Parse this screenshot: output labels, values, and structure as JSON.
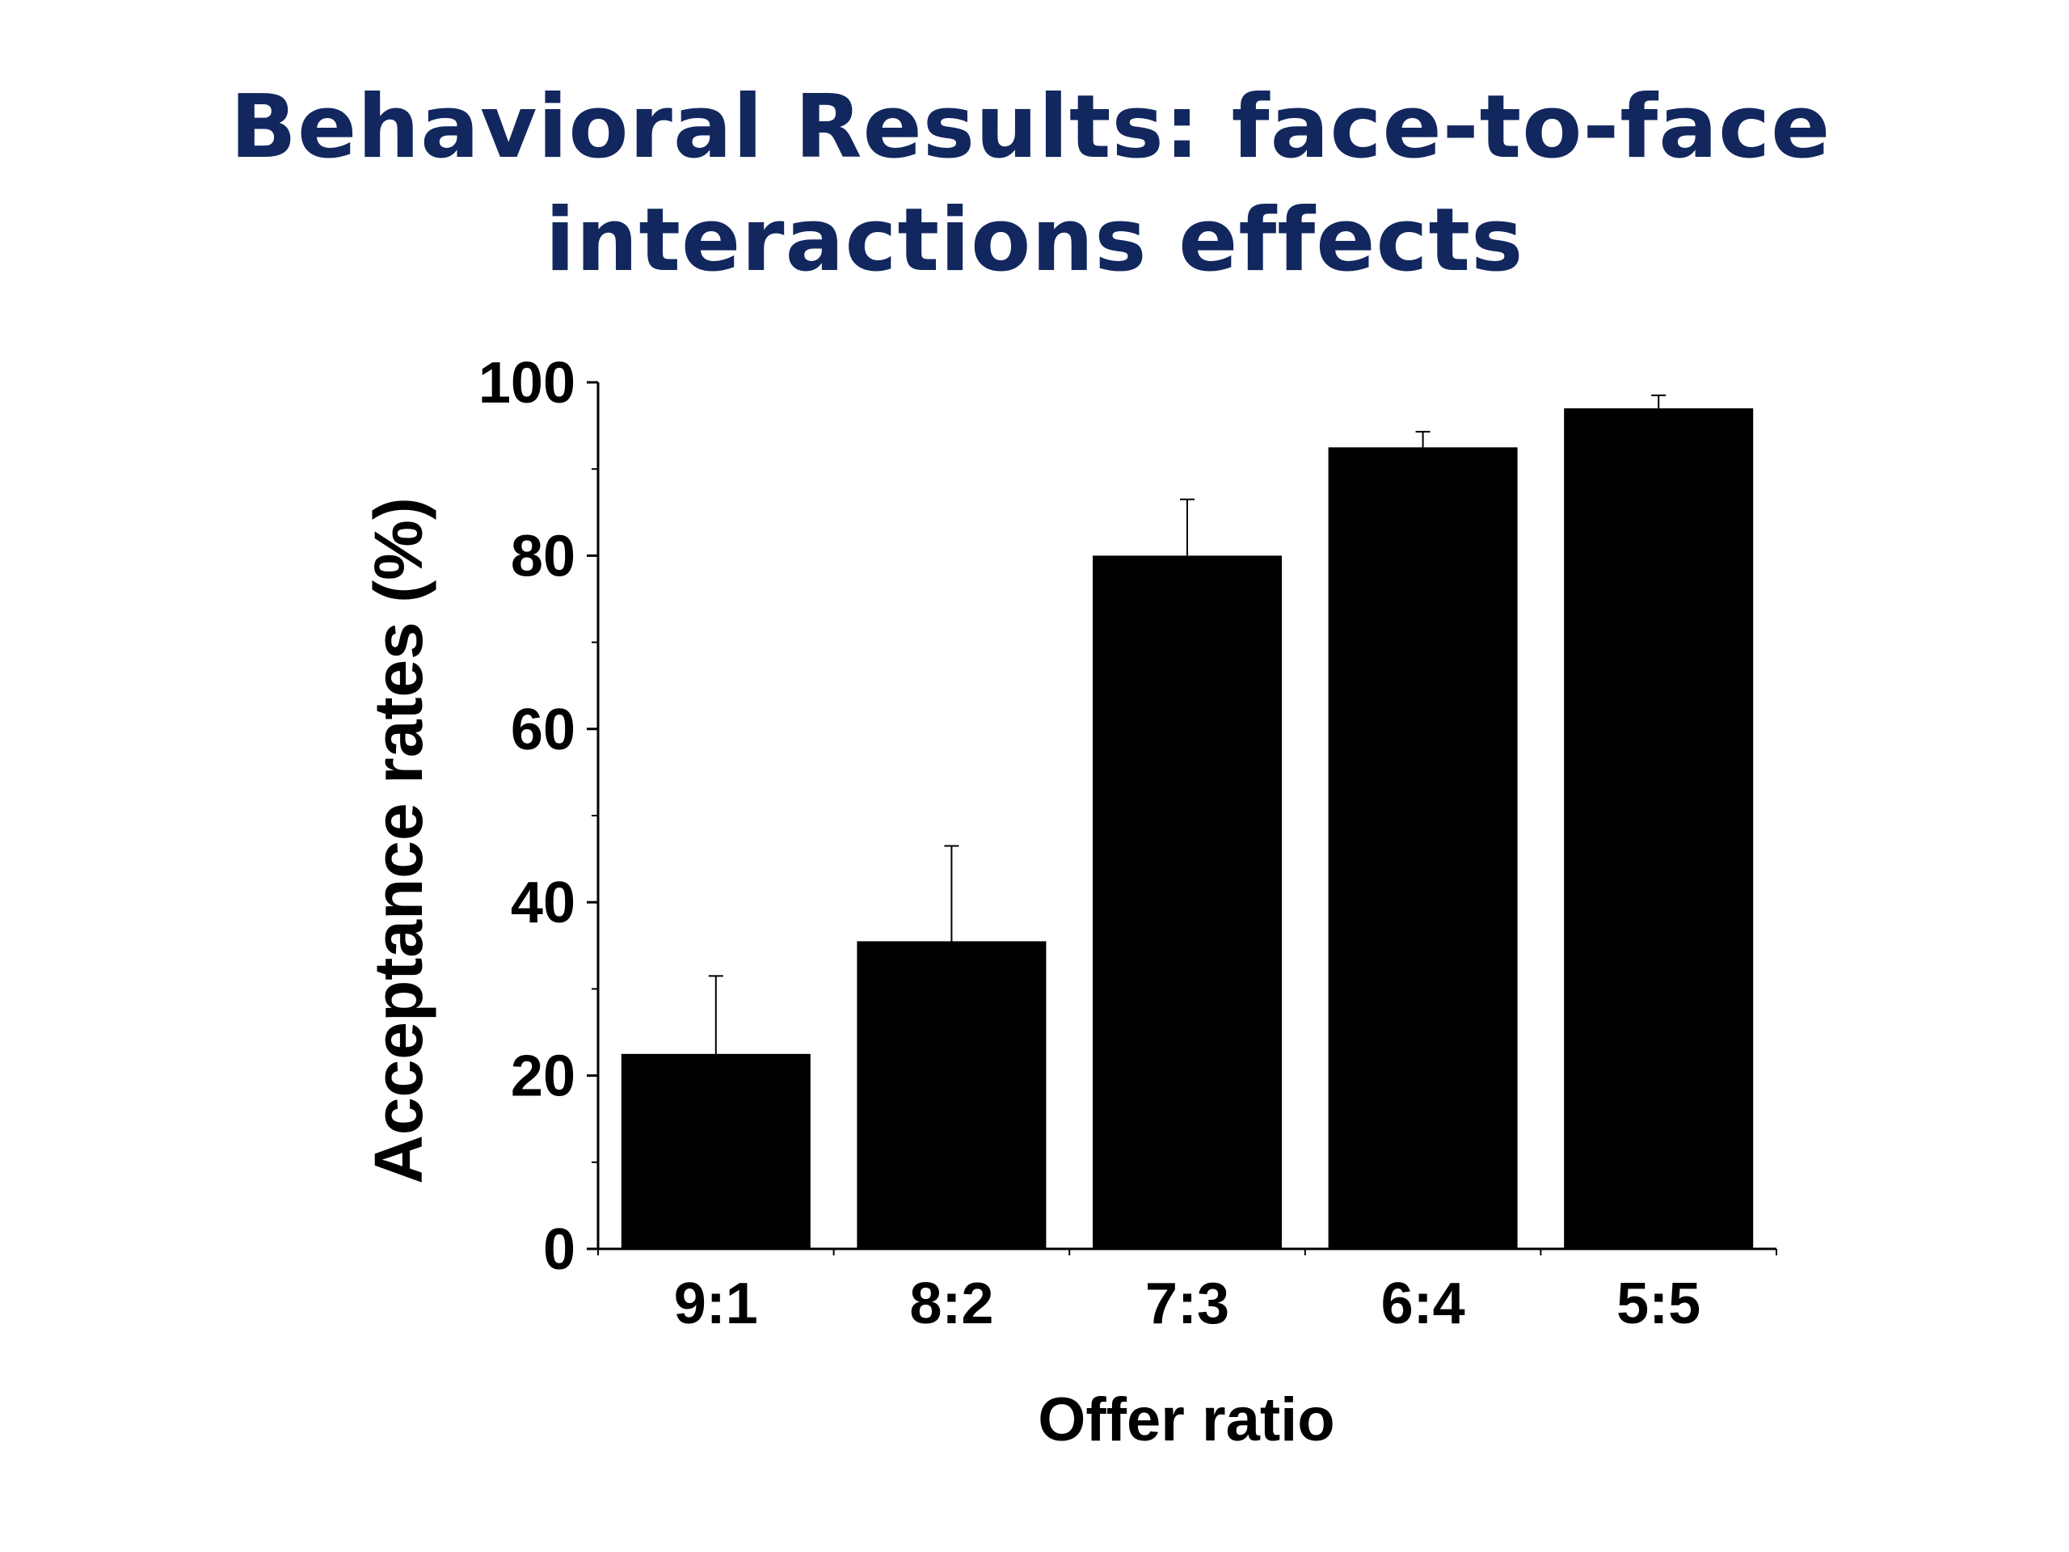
{
  "slide": {
    "title_line1": "Behavioral Results: face-to-face",
    "title_line2": "interactions effects",
    "title_color": "#12275e"
  },
  "chart_data": {
    "type": "bar",
    "title": "Behavioral Results: face-to-face interactions effects",
    "categories": [
      "9:1",
      "8:2",
      "7:3",
      "6:4",
      "5:5"
    ],
    "values": [
      22.5,
      35.5,
      80,
      92.5,
      97
    ],
    "error_upper": [
      9,
      11,
      6.5,
      1.8,
      1.5
    ],
    "xlabel": "Offer ratio",
    "ylabel": "Acceptance rates (%)",
    "ylim": [
      0,
      100
    ],
    "yticks": [
      0,
      20,
      40,
      60,
      80,
      100
    ],
    "grid": false,
    "legend": "none",
    "bar_color": "#000000"
  }
}
